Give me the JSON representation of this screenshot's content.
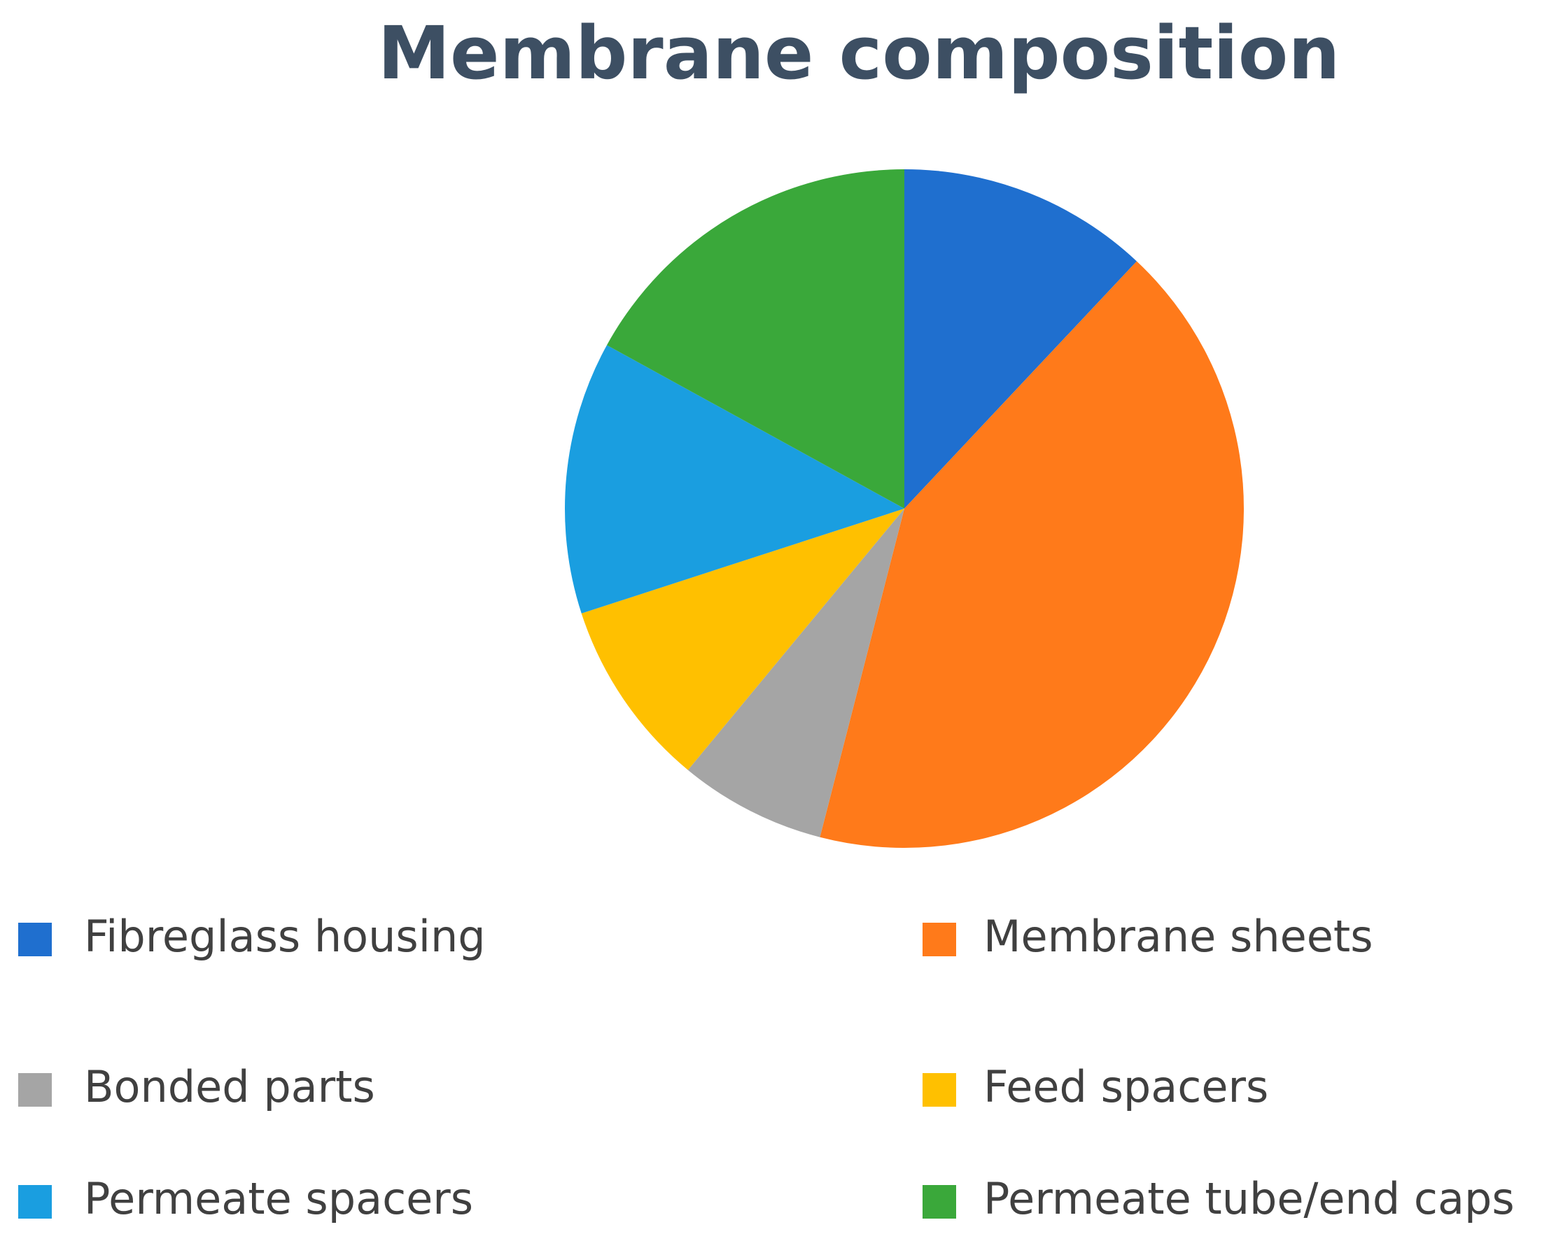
{
  "chart_data": {
    "type": "pie",
    "title": "Membrane composition",
    "categories": [
      "Fibreglass housing",
      "Membrane sheets",
      "Bonded parts",
      "Feed spacers",
      "Permeate spacers",
      "Permeate tube/end caps"
    ],
    "values": [
      12,
      42,
      7,
      9,
      13,
      17
    ],
    "colors": [
      "#1f6fcf",
      "#ff7a1a",
      "#a5a5a5",
      "#ffc000",
      "#1a9ee0",
      "#3aa83a"
    ]
  }
}
